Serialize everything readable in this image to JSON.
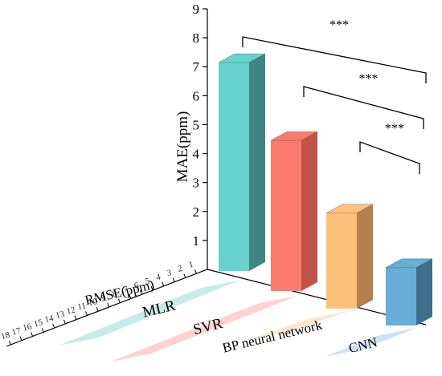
{
  "chart_data": {
    "type": "bar",
    "title": "",
    "ylabel": "MAE(ppm)",
    "depth_axis_label": "RMSE(ppm)",
    "ylim": [
      0,
      9
    ],
    "yticks": [
      1,
      2,
      3,
      4,
      5,
      6,
      7,
      8,
      9
    ],
    "depth_ticks": [
      "1",
      "2",
      "3",
      "4",
      "5",
      "6",
      "7",
      "8",
      "9",
      "10",
      "11",
      "12",
      "13",
      "14",
      "15",
      "16",
      "17",
      "18"
    ],
    "depth_ticks_partial": true,
    "categories": [
      "MLR",
      "SVR",
      "BP neural network",
      "CNN"
    ],
    "series": [
      {
        "values": [
          7.2,
          5.2,
          3.3,
          2.0
        ]
      }
    ],
    "bar_colors": [
      "#67d2cd",
      "#fb7c6e",
      "#fec17b",
      "#68aed8"
    ],
    "bar_side_colors": [
      "#3e8583",
      "#c0524a",
      "#b57f4e",
      "#406e8c"
    ],
    "label_band_colors": [
      "#c6ece9",
      "#fdd2d0",
      "#fde6d0",
      "#cfe2f3"
    ],
    "significance": [
      {
        "from": "MLR",
        "to": "CNN",
        "label": "***"
      },
      {
        "from": "SVR",
        "to": "CNN",
        "label": "***"
      },
      {
        "from": "BP neural network",
        "to": "CNN",
        "label": "***"
      }
    ],
    "grid": false,
    "legend": "none"
  }
}
